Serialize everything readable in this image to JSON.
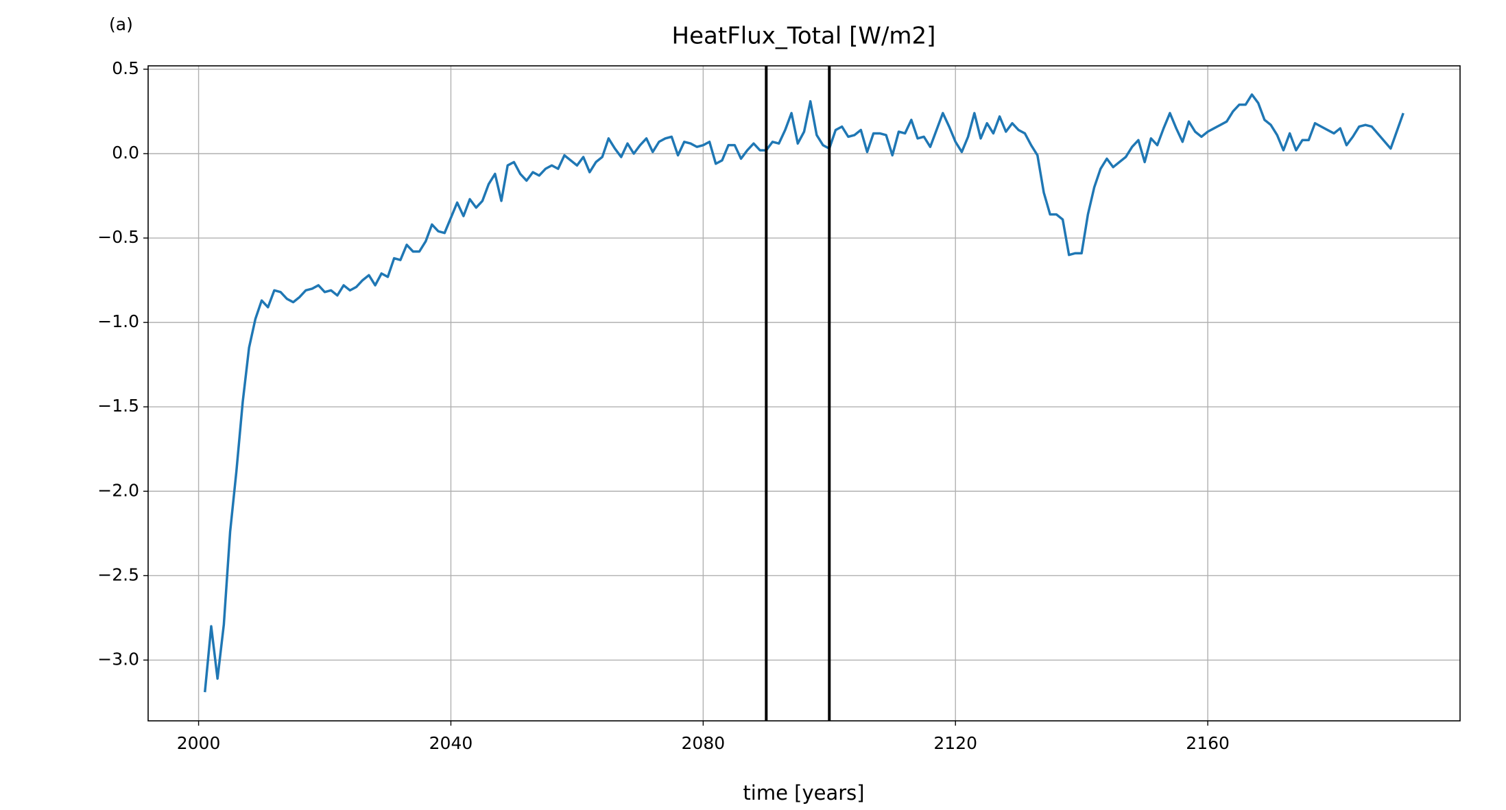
{
  "chart_data": {
    "type": "line",
    "panel_label": "(a)",
    "title": "HeatFlux_Total [W/m2]",
    "xlabel": "time [years]",
    "x": [
      2001,
      2002,
      2003,
      2004,
      2005,
      2006,
      2007,
      2008,
      2009,
      2010,
      2011,
      2012,
      2013,
      2014,
      2015,
      2016,
      2017,
      2018,
      2019,
      2020,
      2021,
      2022,
      2023,
      2024,
      2025,
      2026,
      2027,
      2028,
      2029,
      2030,
      2031,
      2032,
      2033,
      2034,
      2035,
      2036,
      2037,
      2038,
      2039,
      2040,
      2041,
      2042,
      2043,
      2044,
      2045,
      2046,
      2047,
      2048,
      2049,
      2050,
      2051,
      2052,
      2053,
      2054,
      2055,
      2056,
      2057,
      2058,
      2059,
      2060,
      2061,
      2062,
      2063,
      2064,
      2065,
      2066,
      2067,
      2068,
      2069,
      2070,
      2071,
      2072,
      2073,
      2074,
      2075,
      2076,
      2077,
      2078,
      2079,
      2080,
      2081,
      2082,
      2083,
      2084,
      2085,
      2086,
      2087,
      2088,
      2089,
      2090,
      2091,
      2092,
      2093,
      2094,
      2095,
      2096,
      2097,
      2098,
      2099,
      2100,
      2101,
      2102,
      2103,
      2104,
      2105,
      2106,
      2107,
      2108,
      2109,
      2110,
      2111,
      2112,
      2113,
      2114,
      2115,
      2116,
      2117,
      2118,
      2119,
      2120,
      2121,
      2122,
      2123,
      2124,
      2125,
      2126,
      2127,
      2128,
      2129,
      2130,
      2131,
      2132,
      2133,
      2134,
      2135,
      2136,
      2137,
      2138,
      2139,
      2140,
      2141,
      2142,
      2143,
      2144,
      2145,
      2146,
      2147,
      2148,
      2149,
      2150,
      2151,
      2152,
      2153,
      2154,
      2155,
      2156,
      2157,
      2158,
      2159,
      2160,
      2161,
      2162,
      2163,
      2164,
      2165,
      2166,
      2167,
      2168,
      2169,
      2170,
      2171,
      2172,
      2173,
      2174,
      2175,
      2176,
      2177,
      2178,
      2179,
      2180,
      2181,
      2182,
      2183,
      2184,
      2185,
      2186,
      2189,
      2191
    ],
    "series": [
      {
        "name": "HeatFlux_Total",
        "color": "#1f77b4",
        "values": [
          -3.19,
          -2.8,
          -3.11,
          -2.79,
          -2.24,
          -1.88,
          -1.47,
          -1.15,
          -0.98,
          -0.87,
          -0.91,
          -0.81,
          -0.82,
          -0.86,
          -0.88,
          -0.85,
          -0.81,
          -0.8,
          -0.78,
          -0.82,
          -0.81,
          -0.84,
          -0.78,
          -0.81,
          -0.79,
          -0.75,
          -0.72,
          -0.78,
          -0.71,
          -0.73,
          -0.62,
          -0.63,
          -0.54,
          -0.58,
          -0.58,
          -0.52,
          -0.42,
          -0.46,
          -0.47,
          -0.38,
          -0.29,
          -0.37,
          -0.27,
          -0.32,
          -0.28,
          -0.18,
          -0.12,
          -0.28,
          -0.07,
          -0.05,
          -0.12,
          -0.16,
          -0.11,
          -0.13,
          -0.09,
          -0.07,
          -0.09,
          -0.01,
          -0.04,
          -0.07,
          -0.02,
          -0.11,
          -0.05,
          -0.02,
          0.09,
          0.03,
          -0.02,
          0.06,
          0.0,
          0.05,
          0.09,
          0.01,
          0.07,
          0.09,
          0.1,
          -0.01,
          0.07,
          0.06,
          0.04,
          0.05,
          0.07,
          -0.06,
          -0.04,
          0.05,
          0.05,
          -0.03,
          0.02,
          0.06,
          0.02,
          0.02,
          0.07,
          0.06,
          0.14,
          0.24,
          0.06,
          0.13,
          0.31,
          0.11,
          0.05,
          0.03,
          0.14,
          0.16,
          0.1,
          0.11,
          0.14,
          0.01,
          0.12,
          0.12,
          0.11,
          -0.01,
          0.13,
          0.12,
          0.2,
          0.09,
          0.1,
          0.04,
          0.14,
          0.24,
          0.16,
          0.07,
          0.01,
          0.1,
          0.24,
          0.09,
          0.18,
          0.12,
          0.22,
          0.13,
          0.18,
          0.14,
          0.12,
          0.05,
          -0.01,
          -0.23,
          -0.36,
          -0.36,
          -0.39,
          -0.6,
          -0.59,
          -0.59,
          -0.36,
          -0.2,
          -0.09,
          -0.03,
          -0.08,
          -0.05,
          -0.02,
          0.04,
          0.08,
          -0.05,
          0.09,
          0.05,
          0.15,
          0.24,
          0.15,
          0.07,
          0.19,
          0.13,
          0.1,
          0.13,
          0.15,
          0.17,
          0.19,
          0.25,
          0.29,
          0.29,
          0.35,
          0.3,
          0.2,
          0.17,
          0.11,
          0.02,
          0.12,
          0.02,
          0.08,
          0.08,
          0.18,
          0.16,
          0.14,
          0.12,
          0.15,
          0.05,
          0.1,
          0.16,
          0.17,
          0.16,
          0.03,
          0.24
        ]
      }
    ],
    "vlines": [
      2090,
      2100
    ],
    "vline_color": "#000000",
    "xlim": [
      1992,
      2200
    ],
    "ylim": [
      -3.36,
      0.52
    ],
    "xticks": [
      2000,
      2040,
      2080,
      2120,
      2160
    ],
    "yticks": [
      0.5,
      {
        "value": 0,
        "label": "0.0"
      },
      {
        "value": -0.5,
        "label": "−0.5"
      },
      {
        "value": -1,
        "label": "−1.0"
      },
      {
        "value": -1.5,
        "label": "−1.5"
      },
      {
        "value": -2,
        "label": "−2.0"
      },
      {
        "value": -2.5,
        "label": "−2.5"
      },
      {
        "value": -3,
        "label": "−3.0"
      }
    ],
    "grid": true
  }
}
